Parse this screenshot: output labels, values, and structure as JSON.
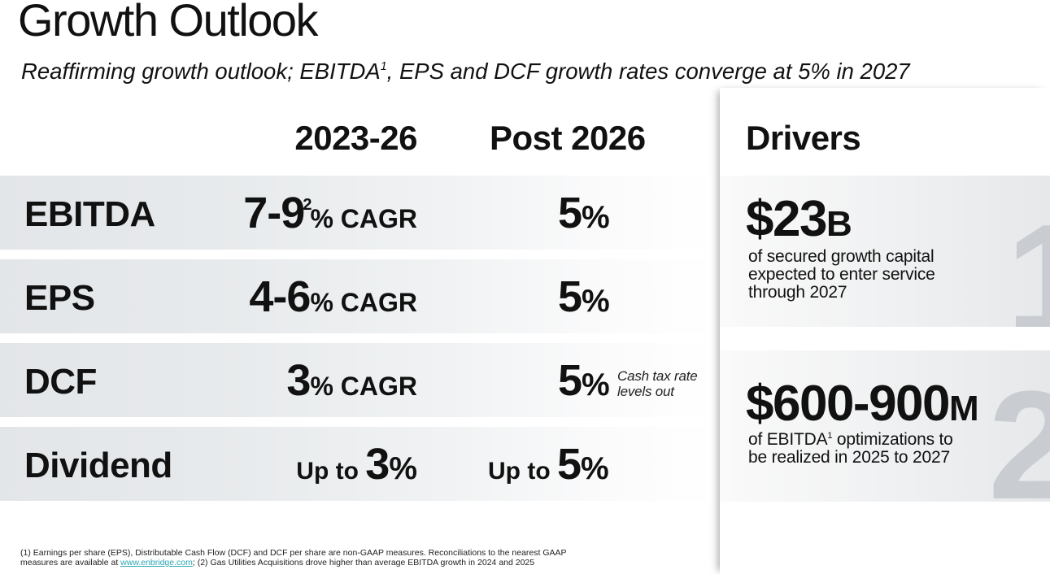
{
  "title": "Growth Outlook",
  "subtitle": {
    "before": "Reaffirming growth outlook; EBITDA",
    "sup": "1",
    "after": ", EPS and DCF growth rates converge at 5% in 2027"
  },
  "columns": {
    "period1": "2023-26",
    "period2": "Post 2026"
  },
  "rows": {
    "ebitda": {
      "label": "EBITDA",
      "range": "7-9",
      "sup": "2",
      "suffix": "% CAGR",
      "post_value": "5",
      "post_unit": "%"
    },
    "eps": {
      "label": "EPS",
      "range": "4-6",
      "suffix": "% CAGR",
      "post_value": "5",
      "post_unit": "%"
    },
    "dcf": {
      "label": "DCF",
      "range": "3",
      "suffix": "% CAGR",
      "post_value": "5",
      "post_unit": "%",
      "note_line1": "Cash tax rate",
      "note_line2": "levels out"
    },
    "dividend": {
      "label": "Dividend",
      "prefix": "Up to ",
      "value": "3",
      "unit": "%",
      "post_prefix": "Up to ",
      "post_value": "5",
      "post_unit": "%"
    }
  },
  "drivers": {
    "heading": "Drivers",
    "card1": {
      "number": "1",
      "amount": "$23",
      "unit": "B",
      "desc_line1": "of secured growth capital",
      "desc_line2": "expected to enter service",
      "desc_line3": "through 2027"
    },
    "card2": {
      "number": "2",
      "amount": "$600-900",
      "unit": "M",
      "desc_before": "of EBITDA",
      "desc_sup": "1",
      "desc_after": " optimizations to",
      "desc_line2": "be realized in 2025 to 2027"
    }
  },
  "footnote": {
    "line1": "(1) Earnings per share (EPS), Distributable Cash Flow (DCF) and DCF per share are non-GAAP measures. Reconciliations to the nearest GAAP",
    "line2_before": "measures are available at ",
    "link": "www.enbridge.com",
    "line2_after": "; (2) Gas Utilities Acquisitions drove higher than average EBITDA growth in 2024 and 2025"
  },
  "colors": {
    "text": "#111111",
    "row_band": "#e3e6e9",
    "card_number": "#c9cdd1",
    "link": "#2aa7b4"
  }
}
